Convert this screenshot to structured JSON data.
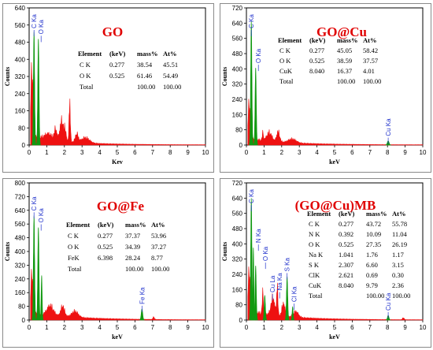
{
  "colors": {
    "spectrum": "#ee1111",
    "highlight": "#119911",
    "title": "#e00000",
    "peak_label": "#2233cc",
    "frame": "#8a8a8a"
  },
  "chart_data": [
    {
      "type": "area",
      "title": "GO",
      "xlabel": "Kev",
      "ylabel": "Counts",
      "xlim": [
        0,
        10
      ],
      "ylim": [
        0,
        640
      ],
      "xticks": [
        "0",
        "1",
        "2",
        "3",
        "4",
        "5",
        "6",
        "7",
        "8",
        "9",
        "10"
      ],
      "yticks": [
        "0",
        "80",
        "160",
        "240",
        "320",
        "400",
        "480",
        "560",
        "640"
      ],
      "table": {
        "headers": [
          "Element",
          "(keV)",
          "mass%",
          "At%"
        ],
        "rows": [
          [
            "C K",
            "0.277",
            "38.54",
            "45.51"
          ],
          [
            "O K",
            "0.525",
            "61.46",
            "54.49"
          ],
          [
            "Total",
            "",
            "100.00",
            "100.00"
          ]
        ]
      },
      "peak_labels": [
        {
          "text": "C Ka",
          "x": 0.277
        },
        {
          "text": "O Ka",
          "x": 0.525
        }
      ],
      "highlight_peaks": [
        {
          "x": 0.277,
          "y": 530,
          "w": 0.05
        },
        {
          "x": 0.525,
          "y": 495,
          "w": 0.05
        }
      ],
      "background_peaks": [
        {
          "x": 0.15,
          "y": 300,
          "w": 0.09
        },
        {
          "x": 1.1,
          "y": 25,
          "w": 0.3
        },
        {
          "x": 1.85,
          "y": 95,
          "w": 0.15
        },
        {
          "x": 2.3,
          "y": 200,
          "w": 0.05
        },
        {
          "x": 2.05,
          "y": 45,
          "w": 0.08
        },
        {
          "x": 1.5,
          "y": 50,
          "w": 0.1
        },
        {
          "x": 3.2,
          "y": 25,
          "w": 0.3
        },
        {
          "x": 2.7,
          "y": 40,
          "w": 0.12
        }
      ],
      "background_level": 45,
      "background_decay": 0.55
    },
    {
      "type": "area",
      "title": "GO@Cu",
      "xlabel": "keV",
      "ylabel": "Counts",
      "xlim": [
        0,
        10
      ],
      "ylim": [
        0,
        720
      ],
      "xticks": [
        "0",
        "1",
        "2",
        "3",
        "4",
        "5",
        "6",
        "7",
        "8",
        "9",
        "10"
      ],
      "yticks": [
        "0",
        "80",
        "160",
        "240",
        "320",
        "400",
        "480",
        "560",
        "640",
        "720"
      ],
      "table": {
        "headers": [
          "Element",
          "(keV)",
          "mass%",
          "At%"
        ],
        "rows": [
          [
            "C K",
            "0.277",
            "45.05",
            "58.42"
          ],
          [
            "O K",
            "0.525",
            "38.59",
            "37.57"
          ],
          [
            "CuK",
            "8.040",
            "16.37",
            "4.01"
          ],
          [
            "Total",
            "",
            "100.00",
            "100.00"
          ]
        ]
      },
      "peak_labels": [
        {
          "text": "C Ka",
          "x": 0.277
        },
        {
          "text": "O Ka",
          "x": 0.525
        },
        {
          "text": "Cu Ka",
          "x": 8.04
        }
      ],
      "highlight_peaks": [
        {
          "x": 0.277,
          "y": 650,
          "w": 0.05
        },
        {
          "x": 0.525,
          "y": 405,
          "w": 0.05
        },
        {
          "x": 8.04,
          "y": 22,
          "w": 0.07
        }
      ],
      "background_peaks": [
        {
          "x": 0.15,
          "y": 180,
          "w": 0.09
        },
        {
          "x": 1.3,
          "y": 45,
          "w": 0.2
        },
        {
          "x": 1.8,
          "y": 55,
          "w": 0.12
        },
        {
          "x": 0.93,
          "y": 40,
          "w": 0.05
        },
        {
          "x": 2.6,
          "y": 20,
          "w": 0.3
        }
      ],
      "background_level": 35,
      "background_decay": 0.5
    },
    {
      "type": "area",
      "title": "GO@Fe",
      "xlabel": "keV",
      "ylabel": "Counts",
      "xlim": [
        0,
        10
      ],
      "ylim": [
        0,
        800
      ],
      "xticks": [
        "0",
        "1",
        "2",
        "3",
        "4",
        "5",
        "6",
        "7",
        "8",
        "9",
        "10"
      ],
      "yticks": [
        "0",
        "80",
        "160",
        "240",
        "320",
        "400",
        "480",
        "560",
        "640",
        "720",
        "800"
      ],
      "table": {
        "headers": [
          "Element",
          "(keV)",
          "mass%",
          "At%"
        ],
        "rows": [
          [
            "C K",
            "0.277",
            "37.37",
            "53.96"
          ],
          [
            "O K",
            "0.525",
            "34.39",
            "37.27"
          ],
          [
            "FeK",
            "6.398",
            "28.24",
            "8.77"
          ],
          [
            "Total",
            "",
            "100.00",
            "100.00"
          ]
        ]
      },
      "peak_labels": [
        {
          "text": "C Ka",
          "x": 0.277
        },
        {
          "text": "O Ka",
          "x": 0.525
        },
        {
          "text": "Fe Ka",
          "x": 6.398
        }
      ],
      "highlight_peaks": [
        {
          "x": 0.277,
          "y": 610,
          "w": 0.05
        },
        {
          "x": 0.525,
          "y": 540,
          "w": 0.05
        },
        {
          "x": 6.398,
          "y": 65,
          "w": 0.06
        },
        {
          "x": 0.71,
          "y": 260,
          "w": 0.04
        }
      ],
      "background_peaks": [
        {
          "x": 0.15,
          "y": 220,
          "w": 0.09
        },
        {
          "x": 1.2,
          "y": 55,
          "w": 0.25
        },
        {
          "x": 1.9,
          "y": 60,
          "w": 0.15
        },
        {
          "x": 2.6,
          "y": 35,
          "w": 0.25
        },
        {
          "x": 7.06,
          "y": 15,
          "w": 0.06
        }
      ],
      "background_level": 45,
      "background_decay": 0.45
    },
    {
      "type": "area",
      "title": "(GO@Cu)MB",
      "xlabel": "keV",
      "ylabel": "Counts",
      "xlim": [
        0,
        10
      ],
      "ylim": [
        0,
        720
      ],
      "xticks": [
        "0",
        "1",
        "2",
        "3",
        "4",
        "5",
        "6",
        "7",
        "8",
        "9",
        "10"
      ],
      "yticks": [
        "0",
        "80",
        "160",
        "240",
        "320",
        "400",
        "480",
        "560",
        "640",
        "720"
      ],
      "table": {
        "headers": [
          "Element",
          "(keV)",
          "mass%",
          "At%"
        ],
        "rows": [
          [
            "C K",
            "0.277",
            "43.72",
            "55.78"
          ],
          [
            "N K",
            "0.392",
            "10.09",
            "11.04"
          ],
          [
            "O K",
            "0.525",
            "27.35",
            "26.19"
          ],
          [
            "Na K",
            "1.041",
            "1.76",
            "1.17"
          ],
          [
            "S K",
            "2.307",
            "6.60",
            "3.15"
          ],
          [
            "ClK",
            "2.621",
            "0.69",
            "0.30"
          ],
          [
            "CuK",
            "8.040",
            "9.79",
            "2.36"
          ],
          [
            "Total",
            "",
            "100.00",
            "100.00"
          ]
        ]
      },
      "peak_labels": [
        {
          "text": "C Ka",
          "x": 0.277
        },
        {
          "text": "N Ka",
          "x": 0.392
        },
        {
          "text": "O Ka",
          "x": 0.525
        },
        {
          "text": "Cu La",
          "x": 0.93
        },
        {
          "text": "Na Ka",
          "x": 1.041
        },
        {
          "text": "S Ka",
          "x": 2.307
        },
        {
          "text": "Cl Ka",
          "x": 2.621
        },
        {
          "text": "Cu Ka",
          "x": 8.04
        }
      ],
      "highlight_peaks": [
        {
          "x": 0.277,
          "y": 640,
          "w": 0.05
        },
        {
          "x": 0.392,
          "y": 380,
          "w": 0.04
        },
        {
          "x": 0.525,
          "y": 285,
          "w": 0.05
        },
        {
          "x": 1.041,
          "y": 130,
          "w": 0.05
        },
        {
          "x": 2.307,
          "y": 230,
          "w": 0.05
        },
        {
          "x": 2.621,
          "y": 70,
          "w": 0.04
        },
        {
          "x": 8.04,
          "y": 25,
          "w": 0.06
        }
      ],
      "background_peaks": [
        {
          "x": 0.15,
          "y": 200,
          "w": 0.09
        },
        {
          "x": 0.93,
          "y": 110,
          "w": 0.05
        },
        {
          "x": 1.75,
          "y": 165,
          "w": 0.05
        },
        {
          "x": 1.5,
          "y": 90,
          "w": 0.15
        },
        {
          "x": 2.1,
          "y": 70,
          "w": 0.12
        },
        {
          "x": 2.8,
          "y": 30,
          "w": 0.2
        },
        {
          "x": 8.9,
          "y": 12,
          "w": 0.06
        }
      ],
      "background_level": 50,
      "background_decay": 0.5
    }
  ]
}
